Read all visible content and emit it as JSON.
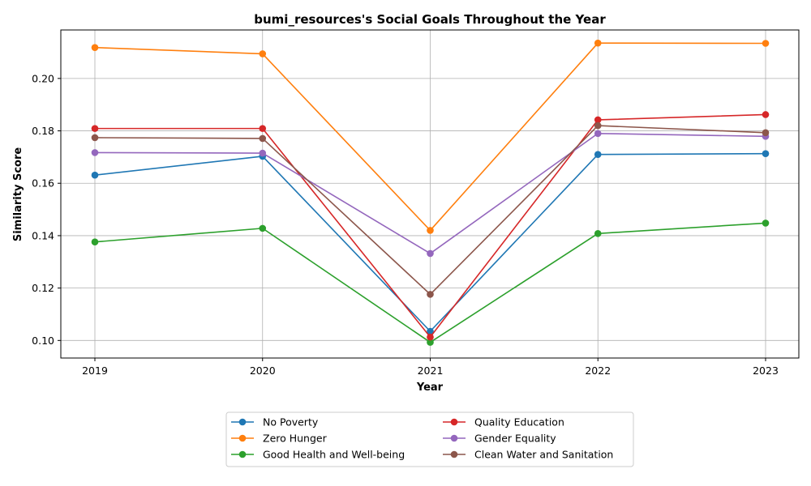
{
  "chart_data": {
    "type": "line",
    "title": "bumi_resources's Social Goals Throughout the Year",
    "xlabel": "Year",
    "ylabel": "Similarity Score",
    "x": [
      "2019",
      "2020",
      "2021",
      "2022",
      "2023"
    ],
    "ylim": [
      0.0933,
      0.2185
    ],
    "yticks": [
      "0.10",
      "0.12",
      "0.14",
      "0.16",
      "0.18",
      "0.20"
    ],
    "grid": true,
    "legend_position": "bottom-center, two columns",
    "series": [
      {
        "name": "No Poverty",
        "color": "#1f77b4",
        "values": [
          0.1631,
          0.1703,
          0.1035,
          0.171,
          0.1713
        ]
      },
      {
        "name": "Zero Hunger",
        "color": "#ff7f0e",
        "values": [
          0.2118,
          0.2094,
          0.142,
          0.2135,
          0.2134
        ]
      },
      {
        "name": "Good Health and Well-being",
        "color": "#2ca02c",
        "values": [
          0.1376,
          0.1428,
          0.0993,
          0.1408,
          0.1448
        ]
      },
      {
        "name": "Quality Education",
        "color": "#d62728",
        "values": [
          0.1809,
          0.1809,
          0.1013,
          0.1842,
          0.1862
        ]
      },
      {
        "name": "Gender Equality",
        "color": "#9467bd",
        "values": [
          0.1717,
          0.1715,
          0.1332,
          0.179,
          0.1779
        ]
      },
      {
        "name": "Clean Water and Sanitation",
        "color": "#8c564b",
        "values": [
          0.1774,
          0.1771,
          0.1176,
          0.182,
          0.1793
        ]
      }
    ]
  }
}
